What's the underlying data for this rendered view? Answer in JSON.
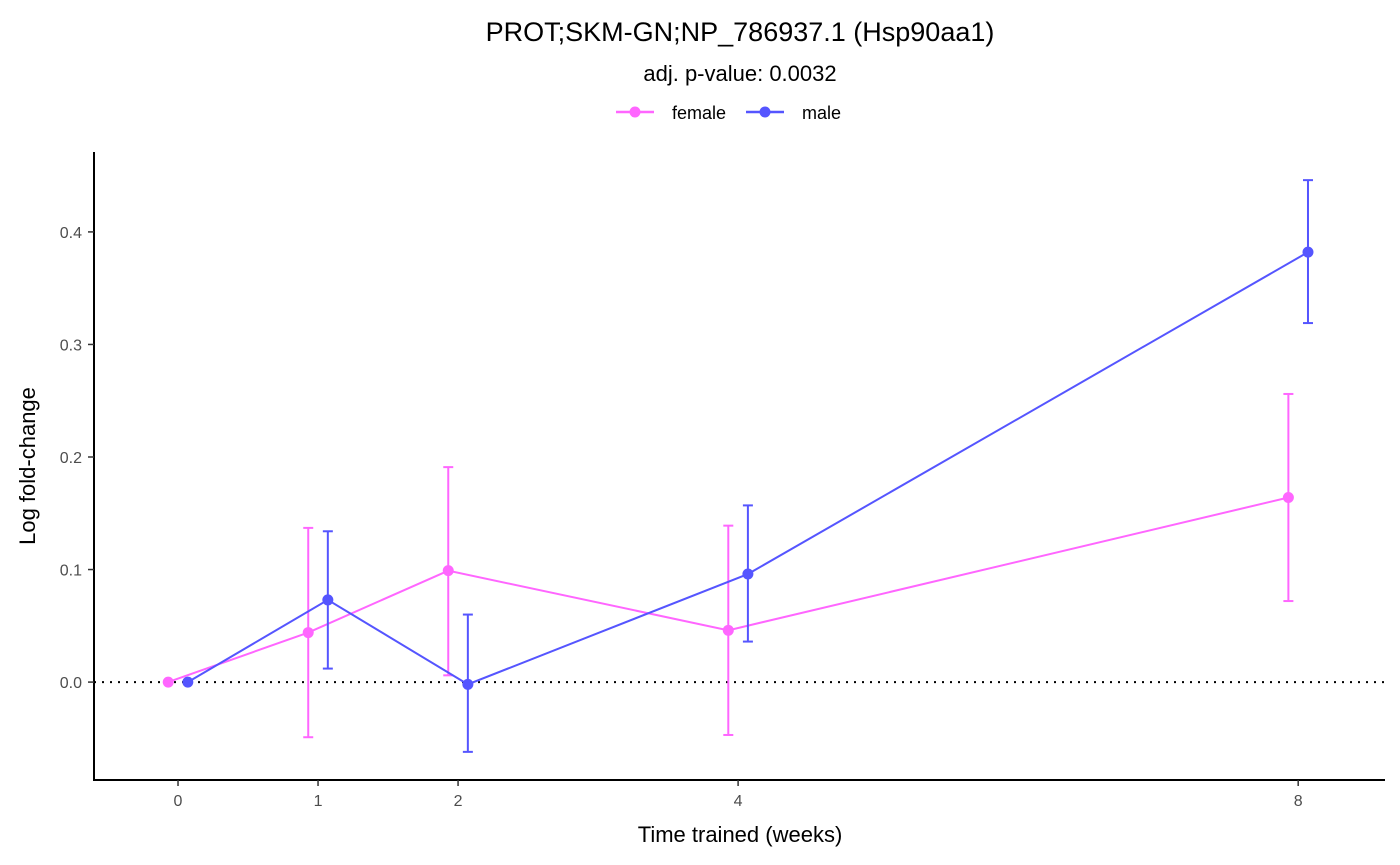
{
  "chart_data": {
    "type": "line",
    "title": "PROT;SKM-GN;NP_786937.1 (Hsp90aa1)",
    "subtitle": "adj. p-value: 0.0032",
    "xlabel": "Time trained (weeks)",
    "ylabel": "Log fold-change",
    "x": [
      0,
      1,
      2,
      4,
      8
    ],
    "x_tick_labels": [
      "0",
      "1",
      "2",
      "4",
      "8"
    ],
    "y_ticks": [
      0.0,
      0.1,
      0.2,
      0.3,
      0.4
    ],
    "y_tick_labels": [
      "0.0",
      "0.1",
      "0.2",
      "0.3",
      "0.4"
    ],
    "xlim": [
      -0.6,
      8.62
    ],
    "ylim": [
      -0.087,
      0.471
    ],
    "reference_line": 0,
    "legend_position": "top",
    "grid": false,
    "series": [
      {
        "name": "female",
        "color": "#ff66ff",
        "dodge": -0.07,
        "values": [
          0,
          0.044,
          0.099,
          0.046,
          0.164
        ],
        "lower": [
          0,
          -0.049,
          0.006,
          -0.047,
          0.072
        ],
        "upper": [
          0,
          0.137,
          0.191,
          0.139,
          0.256
        ]
      },
      {
        "name": "male",
        "color": "#5555ff",
        "dodge": 0.07,
        "values": [
          0,
          0.073,
          -0.002,
          0.096,
          0.382
        ],
        "lower": [
          0,
          0.012,
          -0.062,
          0.036,
          0.319
        ],
        "upper": [
          0,
          0.134,
          0.06,
          0.157,
          0.446
        ]
      }
    ]
  }
}
